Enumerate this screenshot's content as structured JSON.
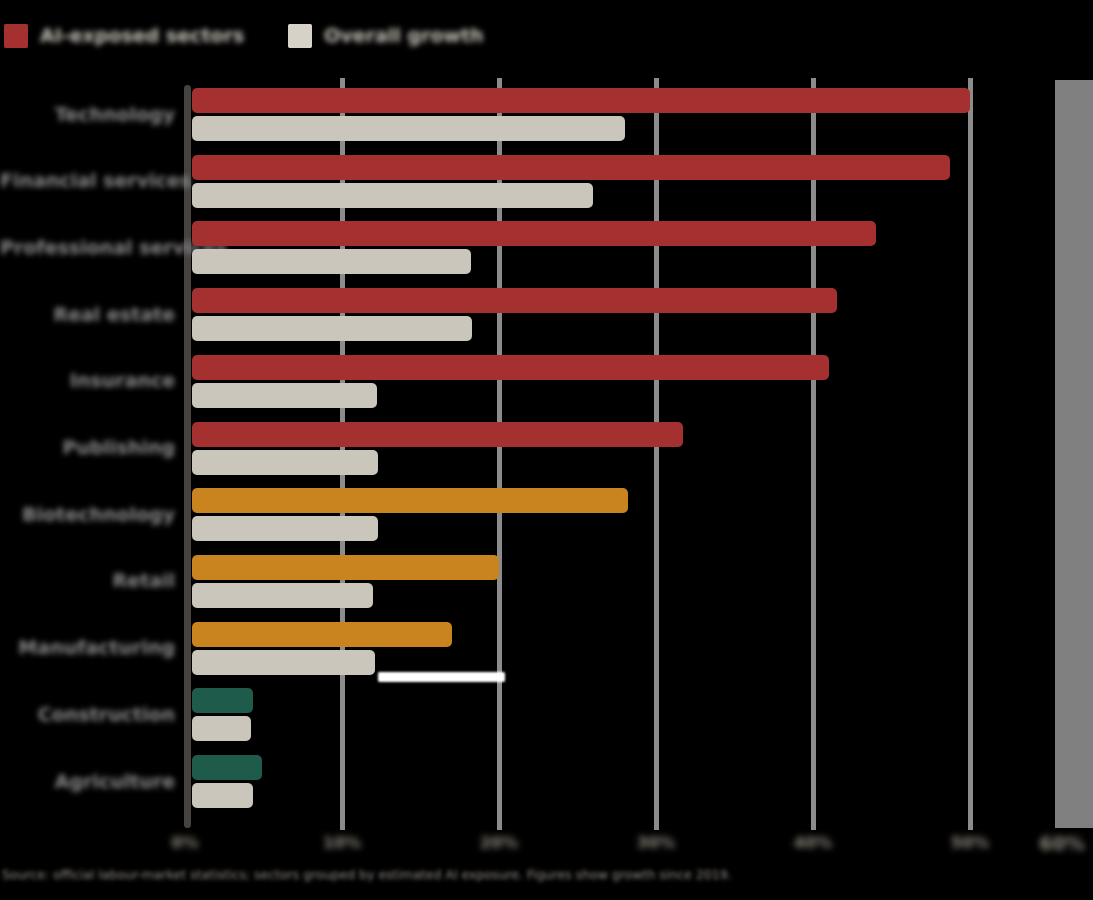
{
  "colors": {
    "high": "#a53030",
    "medium": "#c9831f",
    "low": "#1f5b4a",
    "baseline_bar": "#cbc6bb",
    "legend_swatch_gray": "#d6d2c8",
    "gridline": "#8c8c8c",
    "axis": "#45423f",
    "highlight": "#ffffff",
    "background": "#000000"
  },
  "legend": {
    "item1_label": "AI-exposed sectors",
    "item2_label": "Overall growth"
  },
  "footnote": "Source: official labour-market statistics; sectors grouped by estimated AI exposure. Figures show growth since 2019.",
  "chart_data": {
    "type": "bar",
    "orientation": "horizontal",
    "title": "",
    "xlabel": "",
    "ylabel": "",
    "unit": "%",
    "xlim": [
      0,
      60
    ],
    "x_ticks": [
      "0%",
      "10%",
      "20%",
      "30%",
      "40%",
      "50%",
      "60%"
    ],
    "grid": true,
    "legend_position": "top-left",
    "categories": [
      "Technology",
      "Financial services",
      "Professional services",
      "Real estate",
      "Insurance",
      "Publishing",
      "Biotechnology",
      "Retail",
      "Manufacturing",
      "Construction",
      "Agriculture"
    ],
    "category_levels": [
      "high",
      "high",
      "high",
      "high",
      "high",
      "high",
      "medium",
      "medium",
      "medium",
      "low",
      "low"
    ],
    "series": [
      {
        "name": "AI-exposed sectors",
        "values": [
          50,
          48.7,
          44,
          41.5,
          41,
          31.7,
          28.2,
          20,
          17,
          4.3,
          4.9
        ]
      },
      {
        "name": "Overall growth",
        "values": [
          28,
          26,
          18.2,
          18.3,
          12.2,
          12.3,
          12.3,
          12,
          12.1,
          4.2,
          4.3
        ]
      }
    ]
  }
}
